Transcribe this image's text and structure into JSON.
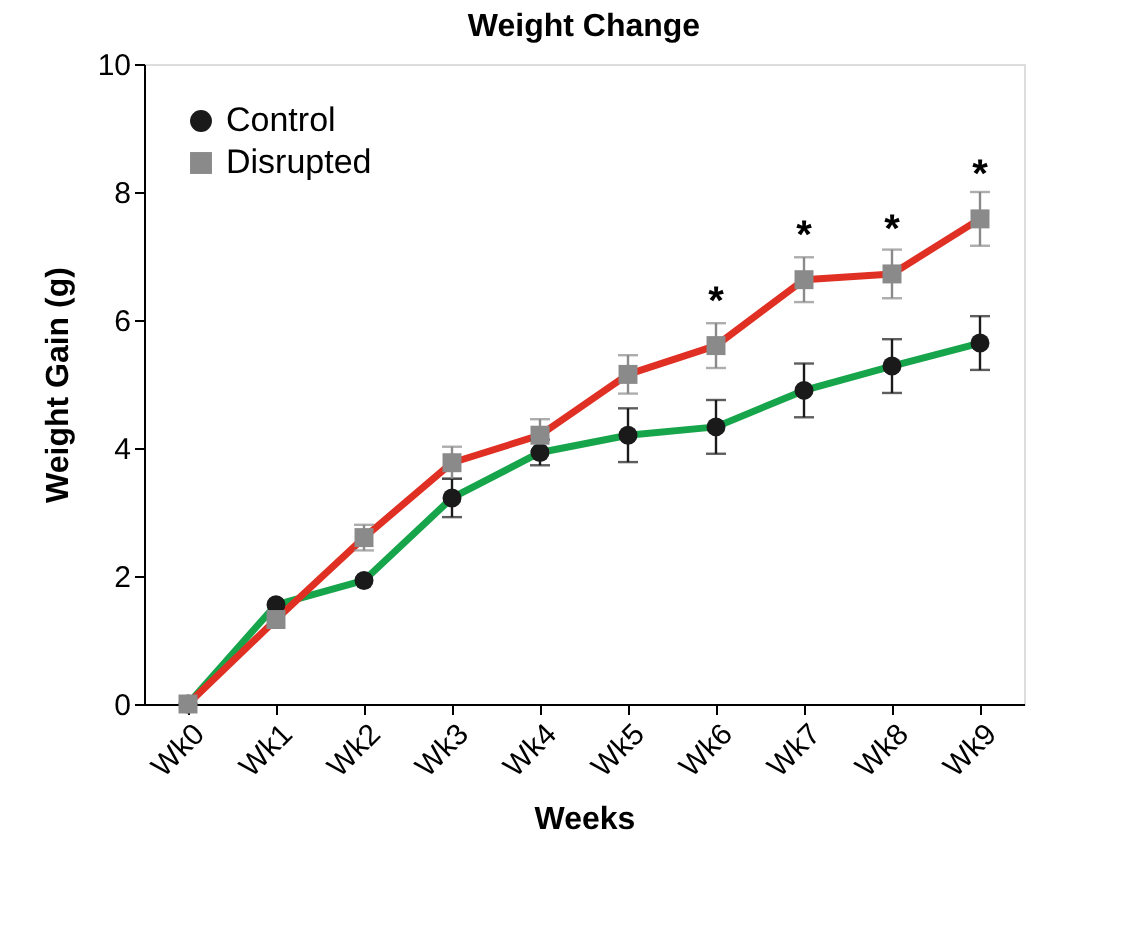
{
  "chart_data": {
    "type": "line",
    "title": "Weight Change",
    "xlabel": "Weeks",
    "ylabel": "Weight Gain (g)",
    "categories": [
      "Wk0",
      "Wk1",
      "Wk2",
      "Wk3",
      "Wk4",
      "Wk5",
      "Wk6",
      "Wk7",
      "Wk8",
      "Wk9"
    ],
    "series": [
      {
        "name": "Control",
        "color": "#16a54a",
        "marker": "circle",
        "values": [
          0,
          1.55,
          1.93,
          3.22,
          3.93,
          4.2,
          4.33,
          4.9,
          5.28,
          5.64
        ],
        "errors": [
          null,
          null,
          null,
          0.3,
          0.2,
          0.42,
          0.42,
          0.42,
          0.42,
          0.42
        ]
      },
      {
        "name": "Disrupted",
        "color": "#e03024",
        "marker": "square",
        "values": [
          0,
          1.32,
          2.6,
          3.77,
          4.2,
          5.15,
          5.6,
          6.63,
          6.72,
          7.58
        ],
        "errors": [
          null,
          null,
          0.2,
          0.25,
          0.25,
          0.3,
          0.35,
          0.35,
          0.38,
          0.42
        ]
      }
    ],
    "ylim": [
      0,
      10
    ],
    "yticks": [
      0,
      2,
      4,
      6,
      8,
      10
    ],
    "grid": false,
    "legend": "top left",
    "annotations": [
      {
        "text": "*",
        "x": "Wk6",
        "y": 5.6
      },
      {
        "text": "*",
        "x": "Wk7",
        "y": 6.63
      },
      {
        "text": "*",
        "x": "Wk8",
        "y": 6.72
      },
      {
        "text": "*",
        "x": "Wk9",
        "y": 7.58
      }
    ]
  }
}
